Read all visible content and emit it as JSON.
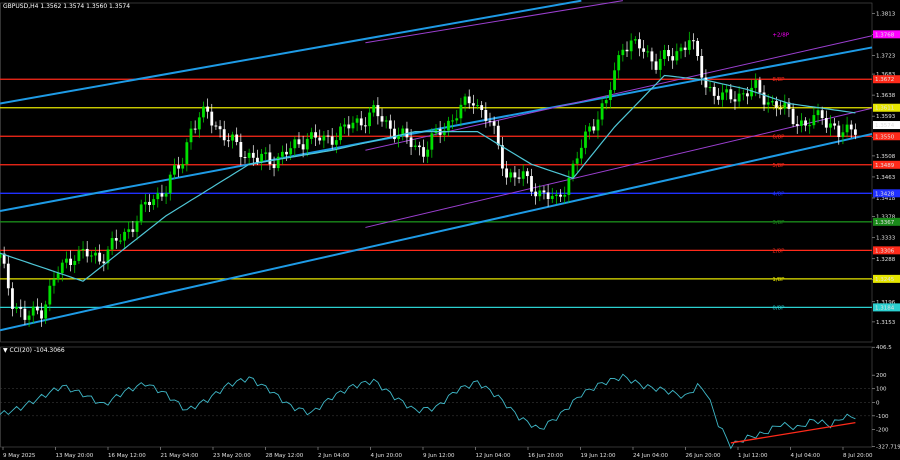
{
  "header": {
    "title": "GBPUSD,H4  1.3562 1.3574 1.3560 1.3574"
  },
  "sub": {
    "title": "▼ CCI(20) -104.3066"
  },
  "colors": {
    "background": "#000000",
    "up_candle": "#00e000",
    "down_candle": "#ffffff",
    "ma": "#4fc6d6",
    "channel_blue": "#1e9be6",
    "channel_purple": "#9b3fd0",
    "murrey_red": "#ff2a1a",
    "murrey_yellow": "#e6e600",
    "murrey_blue": "#2030ff",
    "cci_line": "#3fb8c8",
    "cci_trend": "#ff2a1a"
  },
  "chart_data": [
    {
      "type": "candlestick",
      "symbol": "GBPUSD",
      "timeframe": "H4",
      "ylim": [
        1.311,
        1.3835
      ],
      "y_ticks": [
        "1.3813",
        "1.3768",
        "1.3723",
        "1.3683",
        "1.3638",
        "1.3593",
        "1.3548",
        "1.3508",
        "1.3463",
        "1.3418",
        "1.3378",
        "1.3333",
        "1.3288",
        "1.3243",
        "1.3196",
        "1.3153"
      ],
      "x_ticks": [
        "9 May 2025",
        "13 May 20:00",
        "16 May 12:00",
        "21 May 04:00",
        "23 May 20:00",
        "28 May 12:00",
        "2 Jun 04:00",
        "4 Jun 20:00",
        "9 Jun 12:00",
        "12 Jun 04:00",
        "16 Jun 20:00",
        "19 Jun 12:00",
        "24 Jun 04:00",
        "26 Jun 20:00",
        "1 Jul 12:00",
        "4 Jul 04:00",
        "8 Jul 20:00"
      ],
      "price_path": [
        [
          0,
          1.329
        ],
        [
          3,
          1.32
        ],
        [
          6,
          1.316
        ],
        [
          10,
          1.318
        ],
        [
          14,
          1.326
        ],
        [
          18,
          1.33
        ],
        [
          24,
          1.329
        ],
        [
          30,
          1.334
        ],
        [
          36,
          1.341
        ],
        [
          40,
          1.344
        ],
        [
          44,
          1.35
        ],
        [
          46,
          1.357
        ],
        [
          50,
          1.36
        ],
        [
          54,
          1.355
        ],
        [
          58,
          1.352
        ],
        [
          62,
          1.35
        ],
        [
          66,
          1.35
        ],
        [
          70,
          1.352
        ],
        [
          74,
          1.355
        ],
        [
          78,
          1.354
        ],
        [
          82,
          1.356
        ],
        [
          86,
          1.358
        ],
        [
          90,
          1.36
        ],
        [
          94,
          1.357
        ],
        [
          98,
          1.354
        ],
        [
          102,
          1.352
        ],
        [
          106,
          1.356
        ],
        [
          110,
          1.36
        ],
        [
          114,
          1.363
        ],
        [
          118,
          1.358
        ],
        [
          122,
          1.347
        ],
        [
          126,
          1.346
        ],
        [
          130,
          1.343
        ],
        [
          134,
          1.341
        ],
        [
          138,
          1.348
        ],
        [
          142,
          1.357
        ],
        [
          146,
          1.362
        ],
        [
          150,
          1.375
        ],
        [
          154,
          1.374
        ],
        [
          158,
          1.371
        ],
        [
          162,
          1.372
        ],
        [
          166,
          1.376
        ],
        [
          170,
          1.366
        ],
        [
          174,
          1.363
        ],
        [
          178,
          1.364
        ],
        [
          182,
          1.365
        ],
        [
          186,
          1.362
        ],
        [
          190,
          1.36
        ],
        [
          194,
          1.357
        ],
        [
          198,
          1.36
        ],
        [
          202,
          1.355
        ],
        [
          206,
          1.3574
        ]
      ],
      "ma_path": [
        [
          0,
          1.33
        ],
        [
          20,
          1.324
        ],
        [
          40,
          1.338
        ],
        [
          60,
          1.349
        ],
        [
          80,
          1.352
        ],
        [
          100,
          1.356
        ],
        [
          115,
          1.356
        ],
        [
          128,
          1.349
        ],
        [
          138,
          1.346
        ],
        [
          148,
          1.357
        ],
        [
          160,
          1.368
        ],
        [
          170,
          1.367
        ],
        [
          180,
          1.365
        ],
        [
          190,
          1.362
        ],
        [
          206,
          1.36
        ]
      ],
      "levels": [
        {
          "price": 1.3768,
          "label": "1.3768",
          "color": "#ff00ff",
          "line": false,
          "tag": "+2/8P"
        },
        {
          "price": 1.3672,
          "label": "1.3672",
          "color": "#ff2a1a",
          "line": true,
          "tag": "8/8P"
        },
        {
          "price": 1.3611,
          "label": "1.3611",
          "color": "#e6e600",
          "line": true,
          "tag": "7/8P"
        },
        {
          "price": 1.355,
          "label": "1.3550",
          "color": "#ff2a1a",
          "line": true,
          "tag": "6/8P"
        },
        {
          "price": 1.3489,
          "label": "1.3489",
          "color": "#ff2a1a",
          "line": true,
          "tag": "5/8P"
        },
        {
          "price": 1.3428,
          "label": "1.3428",
          "color": "#2030ff",
          "line": true,
          "tag": "4/8P"
        },
        {
          "price": 1.3367,
          "label": "1.3367",
          "color": "#1a8a1a",
          "line": true,
          "tag": "3/8P"
        },
        {
          "price": 1.3306,
          "label": "1.3306",
          "color": "#ff2a1a",
          "line": true,
          "tag": "2/8P"
        },
        {
          "price": 1.3245,
          "label": "1.3245",
          "color": "#e6e600",
          "line": true,
          "tag": "1/8P"
        },
        {
          "price": 1.3184,
          "label": "1.3184",
          "color": "#2bd0d0",
          "line": true,
          "tag": "0/8P"
        }
      ],
      "current": {
        "price": 1.3574,
        "label": "1.3574"
      }
    },
    {
      "type": "line",
      "name": "CCI(20)",
      "ylim": [
        -330,
        408
      ],
      "y_ticks": [
        "406.5",
        "200",
        "100",
        "0",
        "-100",
        "-200",
        "-327.719"
      ],
      "series_path": [
        [
          0,
          -90
        ],
        [
          5,
          -40
        ],
        [
          10,
          40
        ],
        [
          15,
          120
        ],
        [
          20,
          60
        ],
        [
          25,
          -20
        ],
        [
          30,
          80
        ],
        [
          35,
          140
        ],
        [
          40,
          60
        ],
        [
          45,
          -60
        ],
        [
          50,
          20
        ],
        [
          55,
          130
        ],
        [
          60,
          180
        ],
        [
          65,
          90
        ],
        [
          70,
          -30
        ],
        [
          75,
          -80
        ],
        [
          80,
          40
        ],
        [
          85,
          120
        ],
        [
          90,
          160
        ],
        [
          95,
          40
        ],
        [
          100,
          -60
        ],
        [
          105,
          -40
        ],
        [
          110,
          90
        ],
        [
          115,
          150
        ],
        [
          120,
          40
        ],
        [
          125,
          -110
        ],
        [
          130,
          -200
        ],
        [
          135,
          -90
        ],
        [
          140,
          60
        ],
        [
          145,
          140
        ],
        [
          150,
          190
        ],
        [
          155,
          120
        ],
        [
          160,
          90
        ],
        [
          165,
          40
        ],
        [
          168,
          120
        ],
        [
          170,
          80
        ],
        [
          173,
          -160
        ],
        [
          176,
          -320
        ],
        [
          180,
          -260
        ],
        [
          184,
          -230
        ],
        [
          188,
          -160
        ],
        [
          192,
          -190
        ],
        [
          196,
          -130
        ],
        [
          200,
          -170
        ],
        [
          203,
          -110
        ],
        [
          206,
          -104
        ]
      ],
      "trend_line": [
        [
          176,
          -300
        ],
        [
          206,
          -150
        ]
      ]
    }
  ]
}
